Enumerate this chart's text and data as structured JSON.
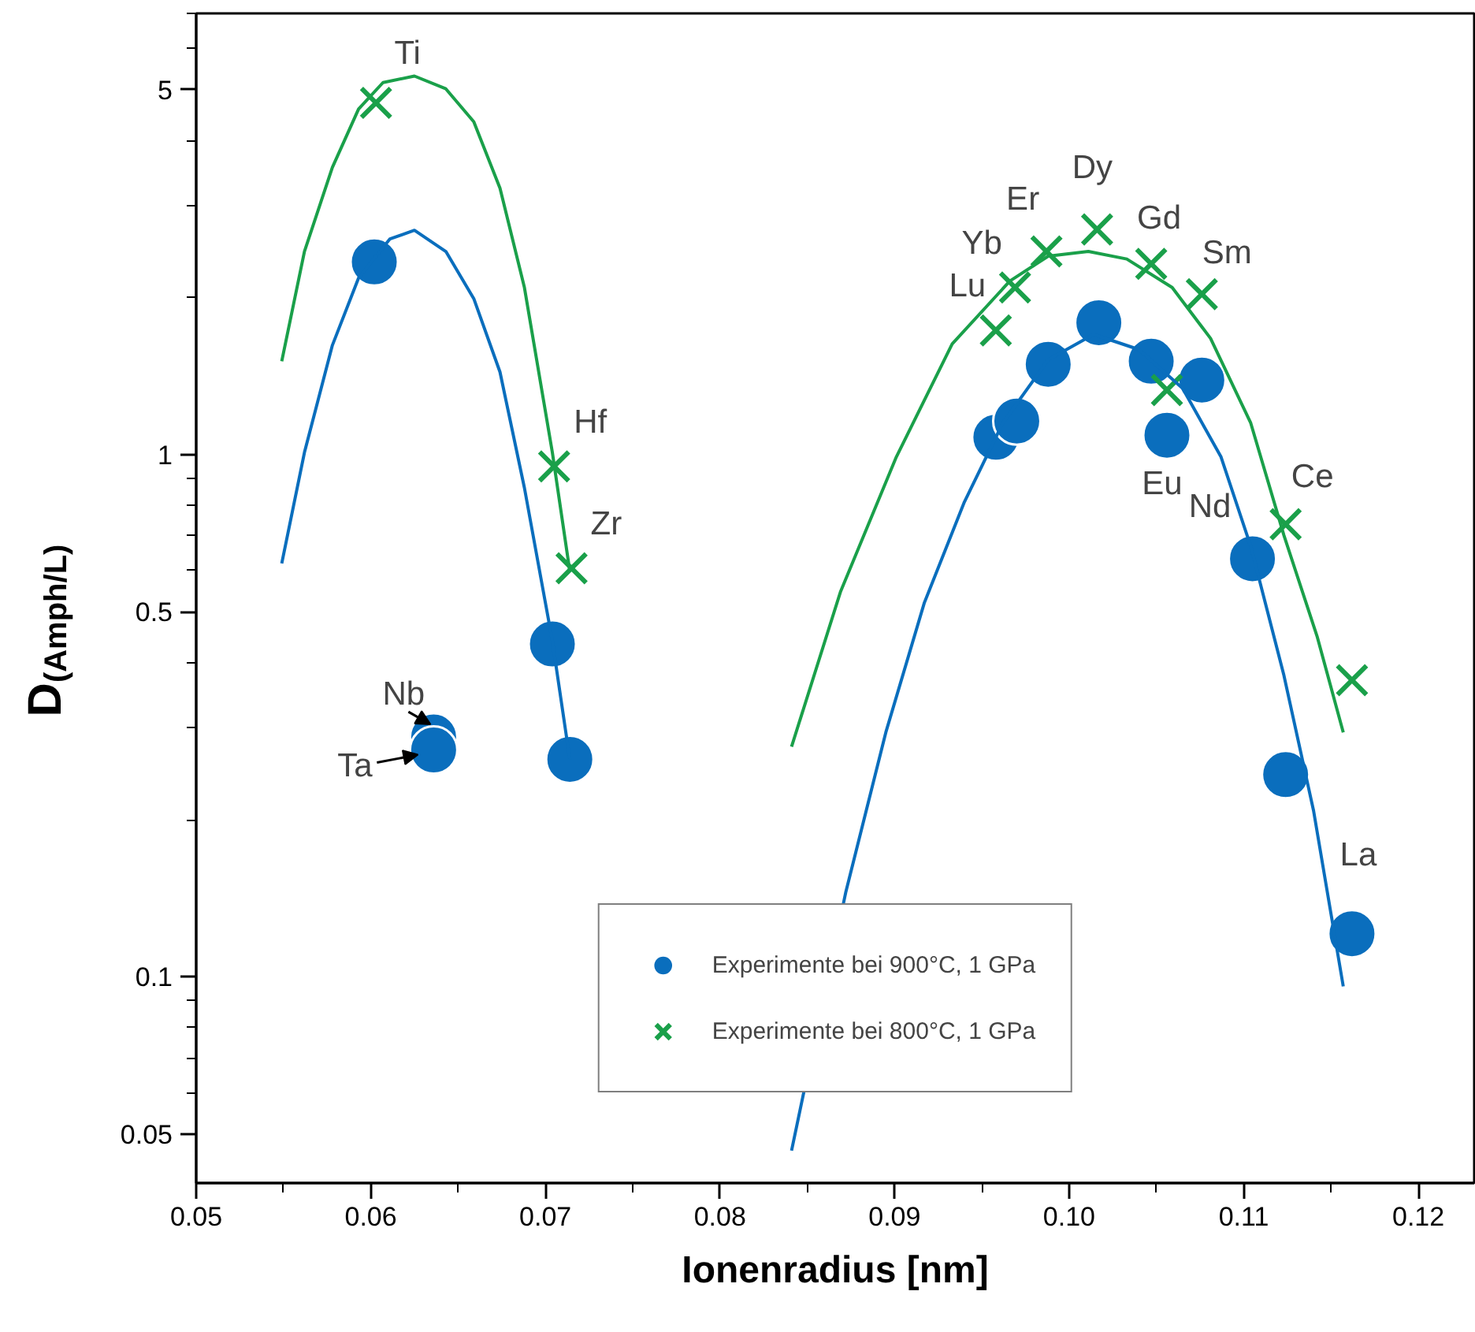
{
  "chart_data": {
    "type": "scatter",
    "xlabel": "Ionenradius [nm]",
    "ylabel": "D$_{(Amph/L)}$",
    "xlim": [
      0.05,
      0.1232
    ],
    "xticks": [
      0.05,
      0.06,
      0.07,
      0.08,
      0.09,
      {
        "value": 0.1,
        "label": "0.10"
      },
      0.11,
      0.12
    ],
    "ylim": [
      0.0403,
      7.0
    ],
    "yticks": [
      0.05,
      0.1,
      0.5,
      1,
      5
    ],
    "log": "y",
    "grid": false,
    "legend": "bottom",
    "series": [
      {
        "name": "Experimente bei 900°C, 1 GPa",
        "marker": "circle",
        "color": "#0a6ebd",
        "x": [
          0.0602,
          0.0636,
          0.0636,
          0.0704,
          0.0714,
          0.0958,
          0.097,
          0.0988,
          0.1017,
          0.1047,
          0.1076,
          0.1056,
          0.1105,
          0.1124,
          0.1162
        ],
        "values": [
          2.34,
          0.288,
          0.272,
          0.434,
          0.261,
          1.08,
          1.16,
          1.49,
          1.79,
          1.51,
          1.39,
          1.09,
          0.632,
          0.244,
          0.121
        ]
      },
      {
        "name": "Experimente bei 800°C, 1 GPa",
        "marker": "cross",
        "color": "#1aa04a",
        "x": [
          0.0603,
          0.0705,
          0.0715,
          0.0958,
          0.0969,
          0.0987,
          0.1016,
          0.1047,
          0.1076,
          0.1056,
          0.1124,
          0.1162
        ],
        "values": [
          4.72,
          0.95,
          0.606,
          1.73,
          2.09,
          2.45,
          2.7,
          2.32,
          2.03,
          1.33,
          0.736,
          0.37
        ]
      },
      {
        "type": "line",
        "color": "#1aa04a",
        "x": [
          0.0549,
          0.0562,
          0.0578,
          0.0593,
          0.0607,
          0.0625,
          0.0643,
          0.0659,
          0.0674,
          0.0688,
          0.0704,
          0.0714
        ],
        "values": [
          1.51,
          2.45,
          3.55,
          4.59,
          5.16,
          5.31,
          5.02,
          4.34,
          3.24,
          2.09,
          1.01,
          0.598
        ]
      },
      {
        "type": "line",
        "color": "#0a6ebd",
        "x": [
          0.0549,
          0.0562,
          0.0578,
          0.0593,
          0.0611,
          0.0625,
          0.0643,
          0.0659,
          0.0674,
          0.0688,
          0.0704,
          0.0714
        ],
        "values": [
          0.619,
          1.01,
          1.62,
          2.18,
          2.59,
          2.69,
          2.45,
          1.99,
          1.44,
          0.864,
          0.44,
          0.261
        ]
      },
      {
        "type": "line",
        "color": "#1aa04a",
        "x": [
          0.0841,
          0.0869,
          0.0901,
          0.0933,
          0.0966,
          0.0988,
          0.1011,
          0.1033,
          0.1059,
          0.1081,
          0.1104,
          0.1123,
          0.1142,
          0.1157
        ],
        "values": [
          0.276,
          0.546,
          0.99,
          1.63,
          2.15,
          2.4,
          2.45,
          2.37,
          2.09,
          1.67,
          1.15,
          0.701,
          0.449,
          0.294
        ]
      },
      {
        "type": "line",
        "color": "#0a6ebd",
        "x": [
          0.0841,
          0.0872,
          0.0895,
          0.0917,
          0.094,
          0.0962,
          0.0988,
          0.1014,
          0.104,
          0.1065,
          0.1087,
          0.1104,
          0.1123,
          0.114,
          0.1157
        ],
        "values": [
          0.0465,
          0.145,
          0.294,
          0.52,
          0.812,
          1.15,
          1.52,
          1.7,
          1.59,
          1.34,
          0.99,
          0.668,
          0.378,
          0.208,
          0.0959
        ]
      }
    ],
    "annotations": [
      {
        "text": "Ti",
        "x": 0.0603,
        "y": 4.72
      },
      {
        "text": "Hf",
        "x": 0.0705,
        "y": 0.95
      },
      {
        "text": "Zr",
        "x": 0.0715,
        "y": 0.606
      },
      {
        "text": "Nb",
        "x": 0.0636,
        "y": 0.288
      },
      {
        "text": "Ta",
        "x": 0.0636,
        "y": 0.272
      },
      {
        "text": "Lu",
        "x": 0.0958,
        "y": 1.73
      },
      {
        "text": "Yb",
        "x": 0.0969,
        "y": 2.09
      },
      {
        "text": "Er",
        "x": 0.0987,
        "y": 2.45
      },
      {
        "text": "Dy",
        "x": 0.1016,
        "y": 2.7
      },
      {
        "text": "Gd",
        "x": 0.1047,
        "y": 2.32
      },
      {
        "text": "Sm",
        "x": 0.1076,
        "y": 2.03
      },
      {
        "text": "Eu",
        "x": 0.1056,
        "y": 1.09
      },
      {
        "text": "Nd",
        "x": 0.1105,
        "y": 0.632
      },
      {
        "text": "Ce",
        "x": 0.1124,
        "y": 0.736
      },
      {
        "text": "La",
        "x": 0.1162,
        "y": 0.121
      }
    ]
  }
}
